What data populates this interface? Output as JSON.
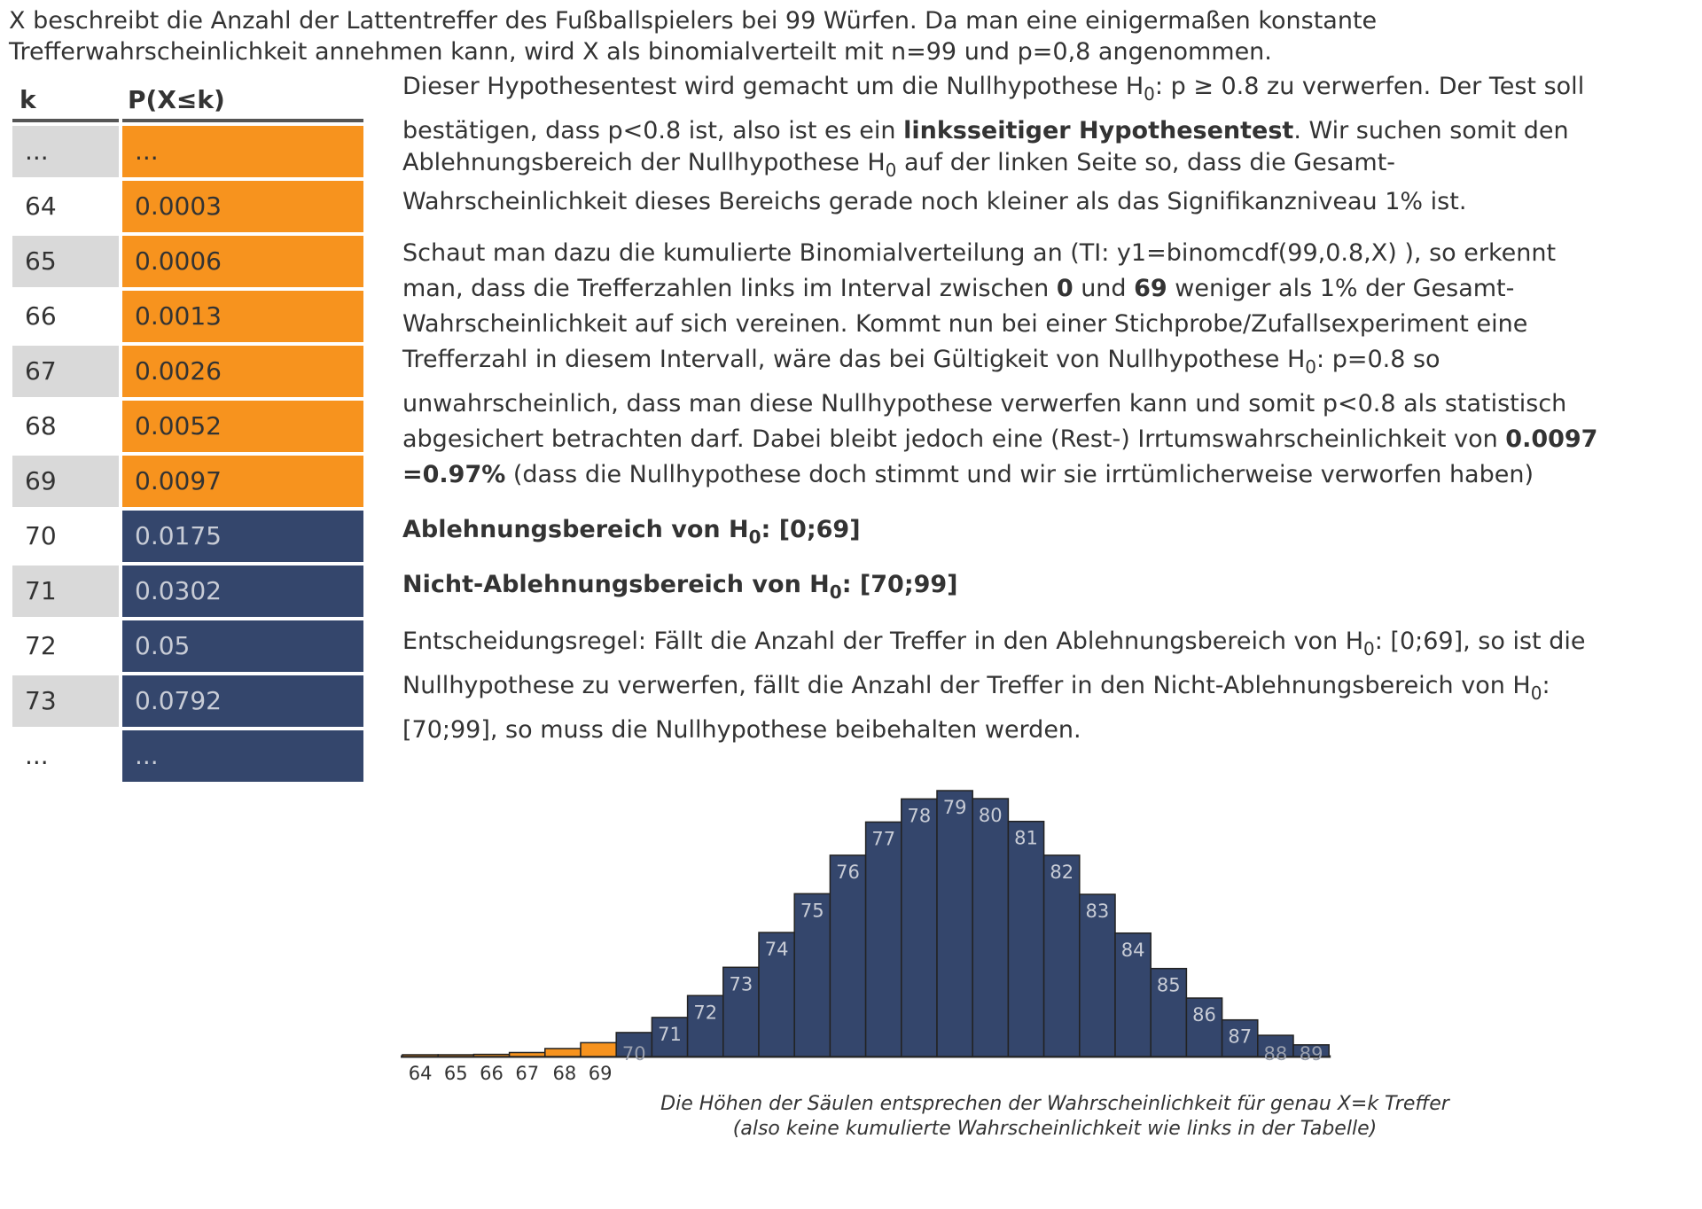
{
  "intro": {
    "line1": "X beschreibt die Anzahl der Lattentreffer des Fußballspielers bei 99 Würfen. Da man eine einigermaßen konstante",
    "line2": "Trefferwahrscheinlichkeit annehmen kann, wird X als binomialverteilt mit n=99 und p=0,8 angenommen."
  },
  "table": {
    "header_k": "k",
    "header_p": "P(X≤k)",
    "rows": [
      {
        "k": "...",
        "p": "...",
        "color": "#f7931e",
        "gray": true
      },
      {
        "k": "64",
        "p": "0.0003",
        "color": "#f7931e",
        "gray": false
      },
      {
        "k": "65",
        "p": "0.0006",
        "color": "#f7931e",
        "gray": true
      },
      {
        "k": "66",
        "p": "0.0013",
        "color": "#f7931e",
        "gray": false
      },
      {
        "k": "67",
        "p": "0.0026",
        "color": "#f7931e",
        "gray": true
      },
      {
        "k": "68",
        "p": "0.0052",
        "color": "#f7931e",
        "gray": false
      },
      {
        "k": "69",
        "p": "0.0097",
        "color": "#f7931e",
        "gray": true
      },
      {
        "k": "70",
        "p": "0.0175",
        "color": "#34466c",
        "gray": false
      },
      {
        "k": "71",
        "p": "0.0302",
        "color": "#34466c",
        "gray": true
      },
      {
        "k": "72",
        "p": "0.05",
        "color": "#34466c",
        "gray": false
      },
      {
        "k": "73",
        "p": "0.0792",
        "color": "#34466c",
        "gray": true
      },
      {
        "k": "...",
        "p": "...",
        "color": "#34466c",
        "gray": false
      }
    ]
  },
  "text": {
    "p1_a": "Dieser Hypothesentest wird gemacht um die Nullhypothese H",
    "p1_sub": "0",
    "p1_b": ": p ≥ 0.8 zu verwerfen. Der Test soll",
    "p1_c": "bestätigen, dass p<0.8 ist, also ist es ein ",
    "p1_bold": "linksseitiger Hypothesentest",
    "p1_d": ". Wir suchen somit den",
    "p1_e": "Ablehnungsbereich der Nullhypothese H",
    "p1_sub2": "0",
    "p1_f": " auf der linken Seite so, dass die Gesamt-",
    "p1_g": "Wahrscheinlichkeit dieses Bereichs gerade noch kleiner als das Signifikanzniveau 1% ist.",
    "p2_a": "Schaut man dazu die kumulierte Binomialverteilung an (TI: y1=binomcdf(99,0.8,X) ), so erkennt",
    "p2_b": "man, dass die Trefferzahlen links im Interval zwischen ",
    "p2_b_bold1": "0",
    "p2_b_mid": " und ",
    "p2_b_bold2": "69",
    "p2_b_end": " weniger als 1% der Gesamt-",
    "p2_c": "Wahrscheinlichkeit auf sich vereinen. Kommt nun bei einer Stichprobe/Zufallsexperiment eine",
    "p2_d": "Trefferzahl in diesem Intervall, wäre das bei Gültigkeit von Nullhypothese H",
    "p2_d_sub": "0",
    "p2_d_end": ": p=0.8 so",
    "p2_e": "unwahrscheinlich, dass man diese Nullhypothese verwerfen kann und somit p<0.8 als statistisch",
    "p2_f": "abgesichert betrachten darf. Dabei bleibt jedoch eine (Rest-) Irrtumswahrscheinlichkeit von ",
    "p2_f_bold": "0.0097",
    "p2_g_bold": "=0.97%",
    "p2_g": " (dass die Nullhypothese doch stimmt und wir sie irrtümlicherweise verworfen haben)",
    "ab_a": "Ablehnungsbereich von H",
    "ab_sub": "0",
    "ab_b": ": [0;69]",
    "nab_a": "Nicht-Ablehnungsbereich von H",
    "nab_sub": "0",
    "nab_b": ": [70;99]",
    "er_a": "Entscheidungsregel: Fällt die Anzahl der Treffer in den Ablehnungsbereich von H",
    "er_sub": "0",
    "er_b": ": [0;69], so ist die",
    "er_c": "Nullhypothese zu verwerfen, fällt die Anzahl der Treffer in den Nicht-Ablehnungsbereich von H",
    "er_sub2": "0",
    "er_d": ":",
    "er_e": "[70;99], so muss die Nullhypothese beibehalten werden."
  },
  "chart_data": {
    "type": "bar",
    "categories": [
      "64",
      "65",
      "66",
      "67",
      "68",
      "69",
      "70",
      "71",
      "72",
      "73",
      "74",
      "75",
      "76",
      "77",
      "78",
      "79",
      "80",
      "81",
      "82",
      "83",
      "84",
      "85",
      "86",
      "87",
      "88",
      "89"
    ],
    "values": [
      0.0002,
      0.0004,
      0.0007,
      0.0013,
      0.0026,
      0.0045,
      0.0078,
      0.0127,
      0.0198,
      0.029,
      0.0403,
      0.0529,
      0.0654,
      0.0762,
      0.0837,
      0.0864,
      0.0838,
      0.0764,
      0.0654,
      0.0527,
      0.0401,
      0.0286,
      0.019,
      0.0119,
      0.0069,
      0.0038
    ],
    "highlight_color": "#f7931e",
    "bar_color": "#34466c",
    "highlight_max_k": 69,
    "ylim": [
      0,
      0.0864
    ],
    "caption_line1": "Die Höhen der Säulen entsprechen der Wahrscheinlichkeit für genau X=k Treffer",
    "caption_line2": "(also keine kumulierte Wahrscheinlichkeit wie links in der Tabelle)"
  }
}
